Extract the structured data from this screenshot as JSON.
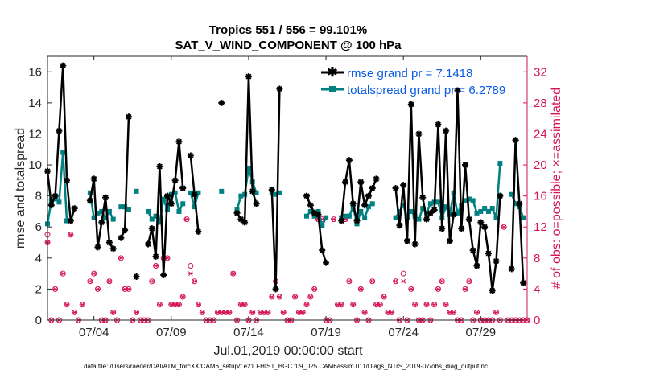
{
  "colors": {
    "rmse": "#000000",
    "spread": "#008080",
    "obs": "#d4145a",
    "axis": "#262626",
    "legend_text": "#0a5ae6"
  },
  "chart_data": {
    "type": "line",
    "title_line1": "Tropics 551 / 556 = 99.101%",
    "title_line2": "SAT_V_WIND_COMPONENT @ 100 hPa",
    "xlabel": "Jul.01,2019 00:00:00 start",
    "ylabel_left": "rmse and totalspread",
    "ylabel_right": "# of obs: o=possible; ×=assimilated",
    "footer": "data file: /Users/raeder/DAI/ATM_forcXX/CAM6_setup/f.e21.FHIST_BGC.f09_025.CAM6assim.011/Diags_NTrS_2019-07/obs_diag_output.nc",
    "xlim": [
      1,
      32
    ],
    "ylim_left": [
      0,
      17
    ],
    "ylim_right": [
      0,
      34
    ],
    "x_ticks": [
      4,
      9,
      14,
      19,
      24,
      29
    ],
    "x_tick_labels": [
      "07/04",
      "07/09",
      "07/14",
      "07/19",
      "07/24",
      "07/29"
    ],
    "y_ticks_left": [
      0,
      2,
      4,
      6,
      8,
      10,
      12,
      14,
      16
    ],
    "y_tick_labels_left": [
      "0",
      "2",
      "4",
      "6",
      "8",
      "10",
      "12",
      "14",
      "16"
    ],
    "y_ticks_right": [
      0,
      4,
      8,
      12,
      16,
      20,
      24,
      28,
      32
    ],
    "y_tick_labels_right": [
      "0",
      "4",
      "8",
      "12",
      "16",
      "20",
      "24",
      "28",
      "32"
    ],
    "legend": [
      {
        "name": "rmse grand pr = 7.1418",
        "series": "rmse"
      },
      {
        "name": "totalspread grand pr = 6.2789",
        "series": "spread"
      }
    ],
    "series": [
      {
        "name": "rmse",
        "x": [
          1.0,
          1.25,
          1.5,
          1.75,
          2.0,
          2.25,
          2.5,
          2.75,
          null,
          3.75,
          4.0,
          4.25,
          4.5,
          4.75,
          5.0,
          5.25,
          null,
          5.75,
          6.0,
          6.25,
          null,
          6.75,
          null,
          7.5,
          7.75,
          8.0,
          8.25,
          8.5,
          8.75,
          9.0,
          9.25,
          9.5,
          9.75,
          null,
          10.25,
          10.5,
          10.75,
          11.0,
          11.25,
          null,
          12.25,
          null,
          13.25,
          13.5,
          13.75,
          14.0,
          14.25,
          14.5,
          null,
          15.5,
          15.75,
          16.0,
          16.25,
          16.5,
          16.75,
          null,
          17.75,
          18.0,
          18.25,
          18.5,
          18.75,
          19.0,
          19.25,
          null,
          20.0,
          20.25,
          20.5,
          20.75,
          21.0,
          21.25,
          21.5,
          21.75,
          22.0,
          22.25,
          null,
          23.5,
          23.75,
          24.0,
          24.25,
          24.5,
          24.75,
          25.0,
          25.25,
          25.5,
          25.75,
          26.0,
          26.25,
          26.5,
          26.75,
          27.0,
          27.25,
          27.5,
          27.75,
          28.0,
          28.25,
          28.5,
          28.75,
          29.0,
          29.25,
          29.5,
          29.75,
          30.0,
          30.25,
          null,
          31.0,
          31.25,
          31.5,
          31.75,
          32.0
        ],
        "values": [
          9.6,
          7.4,
          8.0,
          12.2,
          16.4,
          9.0,
          6.4,
          7.2,
          null,
          7.7,
          9.1,
          4.7,
          6.3,
          7.9,
          5.0,
          4.6,
          null,
          5.3,
          5.8,
          13.1,
          null,
          2.8,
          null,
          4.9,
          5.9,
          4.1,
          9.9,
          2.9,
          8.0,
          7.5,
          9.0,
          11.5,
          8.5,
          null,
          10.6,
          8.1,
          5.7,
          null,
          null,
          null,
          14.0,
          null,
          6.9,
          6.5,
          6.3,
          15.7,
          8.3,
          7.5,
          null,
          8.4,
          2.0,
          14.9,
          null,
          null,
          null,
          null,
          8.0,
          7.4,
          6.9,
          6.8,
          4.5,
          3.7,
          null,
          null,
          6.4,
          8.9,
          10.3,
          7.5,
          6.4,
          8.9,
          7.4,
          8.0,
          8.5,
          9.1,
          null,
          8.5,
          6.1,
          8.7,
          5.1,
          13.9,
          4.9,
          12.0,
          7.9,
          6.5,
          6.9,
          7.1,
          12.6,
          5.9,
          12.2,
          5.1,
          6.8,
          14.8,
          5.9,
          10.0,
          6.5,
          4.5,
          3.5,
          6.3,
          6.0,
          4.3,
          1.9,
          3.8,
          8.0,
          null,
          3.3,
          11.6,
          7.5,
          2.4,
          null
        ]
      },
      {
        "name": "totalspread",
        "x": [
          1.0,
          1.25,
          1.5,
          1.75,
          2.0,
          2.25,
          2.5,
          2.75,
          null,
          3.75,
          4.0,
          4.25,
          4.5,
          4.75,
          5.0,
          5.25,
          null,
          5.75,
          6.0,
          6.25,
          null,
          6.75,
          null,
          7.5,
          7.75,
          8.0,
          8.25,
          8.5,
          8.75,
          9.0,
          9.25,
          9.5,
          9.75,
          null,
          10.25,
          10.5,
          10.75,
          11.0,
          11.25,
          null,
          12.25,
          null,
          13.25,
          13.5,
          13.75,
          14.0,
          14.25,
          14.5,
          null,
          15.5,
          15.75,
          16.0,
          16.25,
          16.5,
          16.75,
          null,
          17.75,
          18.0,
          18.25,
          18.5,
          18.75,
          19.0,
          19.25,
          null,
          20.0,
          20.25,
          20.5,
          20.75,
          21.0,
          21.25,
          21.5,
          21.75,
          22.0,
          22.25,
          null,
          23.5,
          23.75,
          24.0,
          24.25,
          24.5,
          24.75,
          25.0,
          25.25,
          25.5,
          25.75,
          26.0,
          26.25,
          26.5,
          26.75,
          27.0,
          27.25,
          27.5,
          27.75,
          28.0,
          28.25,
          28.5,
          28.75,
          29.0,
          29.25,
          29.5,
          29.75,
          30.0,
          30.25,
          null,
          31.0,
          31.25,
          31.5,
          31.75,
          32.0
        ],
        "values": [
          6.2,
          7.7,
          7.8,
          7.6,
          10.8,
          6.4,
          null,
          null,
          null,
          8.2,
          6.6,
          6.9,
          7.0,
          6.6,
          7.0,
          6.5,
          null,
          7.3,
          7.3,
          7.1,
          null,
          8.3,
          null,
          7.0,
          6.5,
          6.7,
          6.3,
          7.8,
          7.1,
          8.1,
          8.2,
          7.0,
          7.5,
          null,
          8.2,
          7.3,
          8.2,
          null,
          null,
          null,
          8.3,
          null,
          7.1,
          8.0,
          8.1,
          9.8,
          8.9,
          8.2,
          null,
          8.2,
          8.1,
          8.2,
          null,
          null,
          null,
          null,
          6.7,
          7.0,
          6.7,
          7.0,
          6.1,
          6.6,
          null,
          null,
          6.6,
          6.7,
          6.7,
          7.3,
          6.2,
          7.0,
          6.6,
          7.3,
          7.5,
          null,
          null,
          6.6,
          7.0,
          7.4,
          6.6,
          7.0,
          6.7,
          6.5,
          7.2,
          6.9,
          7.5,
          7.6,
          7.6,
          6.6,
          7.3,
          6.8,
          8.2,
          6.9,
          7.4,
          7.7,
          7.8,
          7.7,
          6.9,
          7.0,
          7.2,
          7.0,
          7.2,
          6.6,
          10.1,
          null,
          8.1,
          7.5,
          7.3,
          6.6,
          null
        ]
      },
      {
        "name": "obs possible",
        "x": [
          1.0,
          1.0,
          1.25,
          1.5,
          1.75,
          2.0,
          2.25,
          2.5,
          2.75,
          3.0,
          3.25,
          3.75,
          4.0,
          4.25,
          4.5,
          4.75,
          5.0,
          5.25,
          5.5,
          5.75,
          6.0,
          6.25,
          6.5,
          6.75,
          7.0,
          7.25,
          7.5,
          7.75,
          8.0,
          8.25,
          8.5,
          8.75,
          9.0,
          9.25,
          9.5,
          9.75,
          10.0,
          10.25,
          10.5,
          10.75,
          11.0,
          11.25,
          11.5,
          11.75,
          12.0,
          12.25,
          12.5,
          12.75,
          13.0,
          13.25,
          13.5,
          13.75,
          14.0,
          14.25,
          14.5,
          14.75,
          15.0,
          15.25,
          15.5,
          15.75,
          16.0,
          16.25,
          16.5,
          16.75,
          17.0,
          17.25,
          17.5,
          17.75,
          18.0,
          18.25,
          18.5,
          18.75,
          19.0,
          19.25,
          19.5,
          19.75,
          20.0,
          20.25,
          20.5,
          20.75,
          21.0,
          21.25,
          21.5,
          21.75,
          22.0,
          22.25,
          22.5,
          22.75,
          23.0,
          23.25,
          23.5,
          23.75,
          24.0,
          24.25,
          24.5,
          24.75,
          25.0,
          25.25,
          25.5,
          25.75,
          26.0,
          26.25,
          26.5,
          26.75,
          27.0,
          27.25,
          27.5,
          27.75,
          28.0,
          28.25,
          28.5,
          28.75,
          29.0,
          29.25,
          29.5,
          29.75,
          30.0,
          30.25,
          30.5,
          30.75,
          31.0,
          31.25,
          31.5,
          31.75,
          32.0
        ],
        "values": [
          11,
          10,
          0,
          4,
          0,
          6,
          2,
          11,
          1,
          0,
          2,
          5,
          6,
          4,
          0,
          0,
          5,
          1,
          0,
          8,
          4,
          4,
          0,
          1,
          0,
          0,
          0,
          5,
          7,
          2,
          8,
          8,
          2,
          2,
          2,
          3,
          13,
          7,
          5,
          2,
          1,
          0,
          0,
          0,
          1,
          1,
          1,
          1,
          6,
          0,
          2,
          2,
          0,
          1,
          0,
          1,
          1,
          1,
          3,
          5,
          3,
          1,
          0,
          0,
          3,
          1,
          1,
          2,
          3,
          4,
          13,
          13,
          0,
          0,
          13,
          2,
          2,
          13,
          5,
          2,
          0,
          4,
          1,
          0,
          5,
          2,
          2,
          3,
          1,
          1,
          5,
          0,
          6,
          0,
          4,
          2,
          0,
          0,
          2,
          0,
          2,
          4,
          5,
          2,
          1,
          1,
          0,
          0,
          4,
          5,
          0,
          1,
          0,
          0,
          0,
          0,
          1,
          0,
          12,
          0,
          0,
          0,
          0,
          0,
          0
        ]
      },
      {
        "name": "obs assimilated",
        "x": [
          1.0,
          1.0,
          1.25,
          1.5,
          1.75,
          2.0,
          2.25,
          2.5,
          2.75,
          3.0,
          3.25,
          3.75,
          4.0,
          4.25,
          4.5,
          4.75,
          5.0,
          5.25,
          5.5,
          5.75,
          6.0,
          6.25,
          6.5,
          6.75,
          7.0,
          7.25,
          7.5,
          7.75,
          8.0,
          8.25,
          8.5,
          8.75,
          9.0,
          9.25,
          9.5,
          9.75,
          10.0,
          10.25,
          10.5,
          10.75,
          11.0,
          11.25,
          11.5,
          11.75,
          12.0,
          12.25,
          12.5,
          12.75,
          13.0,
          13.25,
          13.5,
          13.75,
          14.0,
          14.25,
          14.5,
          14.75,
          15.0,
          15.25,
          15.5,
          15.75,
          16.0,
          16.25,
          16.5,
          16.75,
          17.0,
          17.25,
          17.5,
          17.75,
          18.0,
          18.25,
          18.5,
          18.75,
          19.0,
          19.25,
          19.5,
          19.75,
          20.0,
          20.25,
          20.5,
          20.75,
          21.0,
          21.25,
          21.5,
          21.75,
          22.0,
          22.25,
          22.5,
          22.75,
          23.0,
          23.25,
          23.5,
          23.75,
          24.0,
          24.25,
          24.5,
          24.75,
          25.0,
          25.25,
          25.5,
          25.75,
          26.0,
          26.25,
          26.5,
          26.75,
          27.0,
          27.25,
          27.5,
          27.75,
          28.0,
          28.25,
          28.5,
          28.75,
          29.0,
          29.25,
          29.5,
          29.75,
          30.0,
          30.25,
          30.5,
          30.75,
          31.0,
          31.25,
          31.5,
          31.75,
          32.0
        ],
        "values": [
          10,
          10,
          0,
          4,
          0,
          6,
          2,
          11,
          1,
          0,
          2,
          5,
          6,
          4,
          0,
          0,
          5,
          1,
          0,
          8,
          4,
          4,
          0,
          1,
          0,
          0,
          0,
          5,
          7,
          2,
          8,
          8,
          2,
          2,
          2,
          3,
          13,
          6,
          5,
          2,
          1,
          0,
          0,
          0,
          1,
          1,
          1,
          1,
          6,
          0,
          2,
          2,
          0,
          1,
          0,
          1,
          1,
          1,
          3,
          5,
          3,
          1,
          0,
          0,
          3,
          1,
          1,
          2,
          3,
          4,
          13,
          13,
          0,
          0,
          13,
          2,
          2,
          13,
          5,
          2,
          0,
          4,
          1,
          0,
          5,
          2,
          2,
          3,
          1,
          1,
          5,
          0,
          5,
          0,
          4,
          2,
          0,
          0,
          2,
          0,
          2,
          4,
          5,
          2,
          1,
          1,
          0,
          0,
          4,
          5,
          0,
          1,
          0,
          0,
          0,
          0,
          1,
          0,
          12,
          0,
          0,
          0,
          0,
          0,
          0
        ]
      }
    ]
  }
}
